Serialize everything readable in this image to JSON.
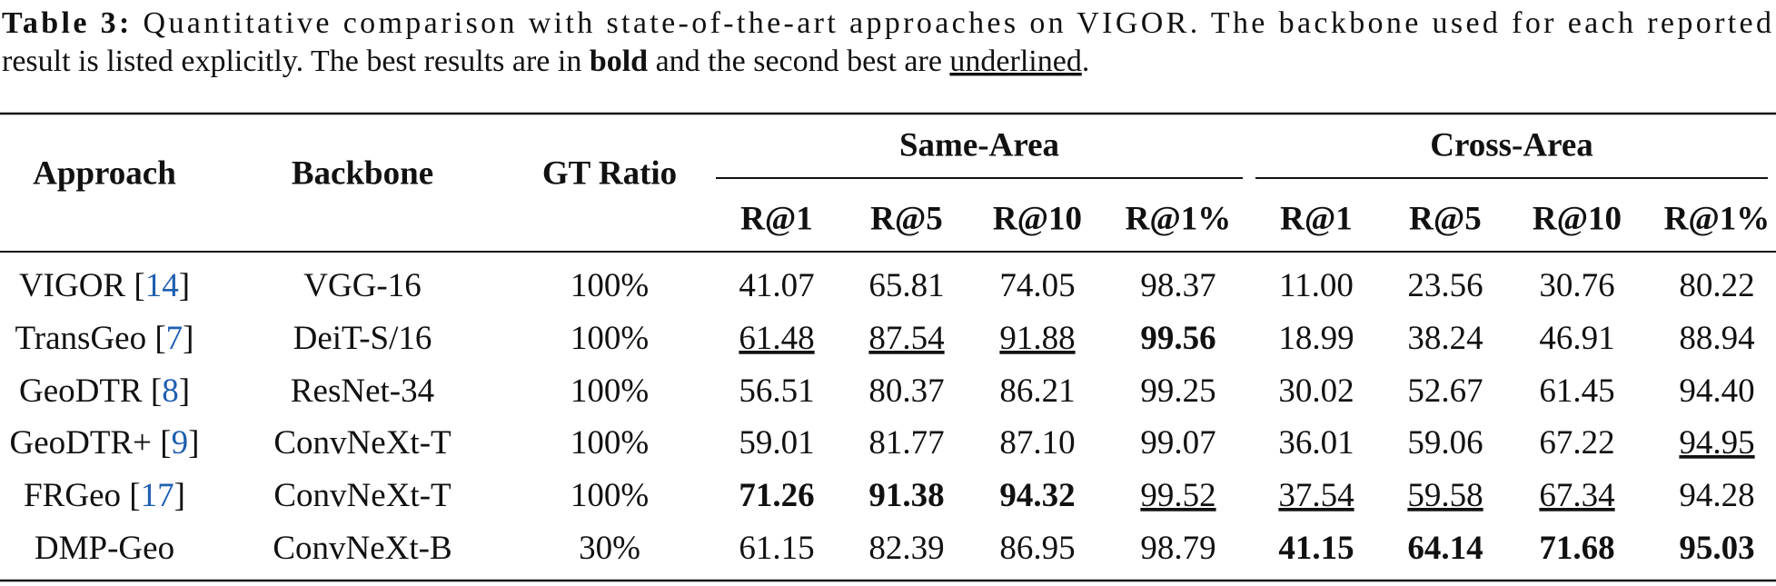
{
  "caption": {
    "label": "Table 3:",
    "lines": [
      [
        {
          "text": " Quantitative comparison with state-of-the-art approaches on VIGOR. The backbone used for each reported"
        }
      ],
      [
        {
          "text": "result is listed explicitly. The best results are in "
        },
        {
          "text": "bold",
          "style": "bold"
        },
        {
          "text": " and the second best are "
        },
        {
          "text": "underlined",
          "style": "underline"
        },
        {
          "text": "."
        }
      ]
    ]
  },
  "table": {
    "columns": [
      "Approach",
      "Backbone",
      "GT Ratio"
    ],
    "groups": [
      {
        "name": "Same-Area",
        "metrics": [
          "R@1",
          "R@5",
          "R@10",
          "R@1%"
        ]
      },
      {
        "name": "Cross-Area",
        "metrics": [
          "R@1",
          "R@5",
          "R@10",
          "R@1%"
        ]
      }
    ],
    "rows": [
      [
        {
          "text": "VIGOR",
          "ref": "[14]"
        },
        {
          "text": "VGG-16"
        },
        {
          "text": "100%"
        },
        {
          "text": "41.07"
        },
        {
          "text": "65.81"
        },
        {
          "text": "74.05"
        },
        {
          "text": "98.37"
        },
        {
          "text": "11.00"
        },
        {
          "text": "23.56"
        },
        {
          "text": "30.76"
        },
        {
          "text": "80.22"
        }
      ],
      [
        {
          "text": "TransGeo",
          "ref": "[7]"
        },
        {
          "text": "DeiT-S/16"
        },
        {
          "text": "100%"
        },
        {
          "text": "61.48",
          "style": "underline"
        },
        {
          "text": "87.54",
          "style": "underline"
        },
        {
          "text": "91.88",
          "style": "underline"
        },
        {
          "text": "99.56",
          "style": "bold"
        },
        {
          "text": "18.99"
        },
        {
          "text": "38.24"
        },
        {
          "text": "46.91"
        },
        {
          "text": "88.94"
        }
      ],
      [
        {
          "text": "GeoDTR",
          "ref": "[8]"
        },
        {
          "text": "ResNet-34"
        },
        {
          "text": "100%"
        },
        {
          "text": "56.51"
        },
        {
          "text": "80.37"
        },
        {
          "text": "86.21"
        },
        {
          "text": "99.25"
        },
        {
          "text": "30.02"
        },
        {
          "text": "52.67"
        },
        {
          "text": "61.45"
        },
        {
          "text": "94.40"
        }
      ],
      [
        {
          "text": "GeoDTR+",
          "ref": "[9]"
        },
        {
          "text": "ConvNeXt-T"
        },
        {
          "text": "100%"
        },
        {
          "text": "59.01"
        },
        {
          "text": "81.77"
        },
        {
          "text": "87.10"
        },
        {
          "text": "99.07"
        },
        {
          "text": "36.01"
        },
        {
          "text": "59.06"
        },
        {
          "text": "67.22"
        },
        {
          "text": "94.95",
          "style": "underline"
        }
      ],
      [
        {
          "text": "FRGeo",
          "ref": "[17]"
        },
        {
          "text": "ConvNeXt-T"
        },
        {
          "text": "100%"
        },
        {
          "text": "71.26",
          "style": "bold"
        },
        {
          "text": "91.38",
          "style": "bold"
        },
        {
          "text": "94.32",
          "style": "bold"
        },
        {
          "text": "99.52",
          "style": "underline"
        },
        {
          "text": "37.54",
          "style": "underline"
        },
        {
          "text": "59.58",
          "style": "underline"
        },
        {
          "text": "67.34",
          "style": "underline"
        },
        {
          "text": "94.28"
        }
      ],
      [
        {
          "text": "DMP-Geo"
        },
        {
          "text": "ConvNeXt-B"
        },
        {
          "text": "30%"
        },
        {
          "text": "61.15"
        },
        {
          "text": "82.39"
        },
        {
          "text": "86.95"
        },
        {
          "text": "98.79"
        },
        {
          "text": "41.15",
          "style": "bold"
        },
        {
          "text": "64.14",
          "style": "bold"
        },
        {
          "text": "71.68",
          "style": "bold"
        },
        {
          "text": "95.03",
          "style": "bold"
        }
      ]
    ]
  }
}
